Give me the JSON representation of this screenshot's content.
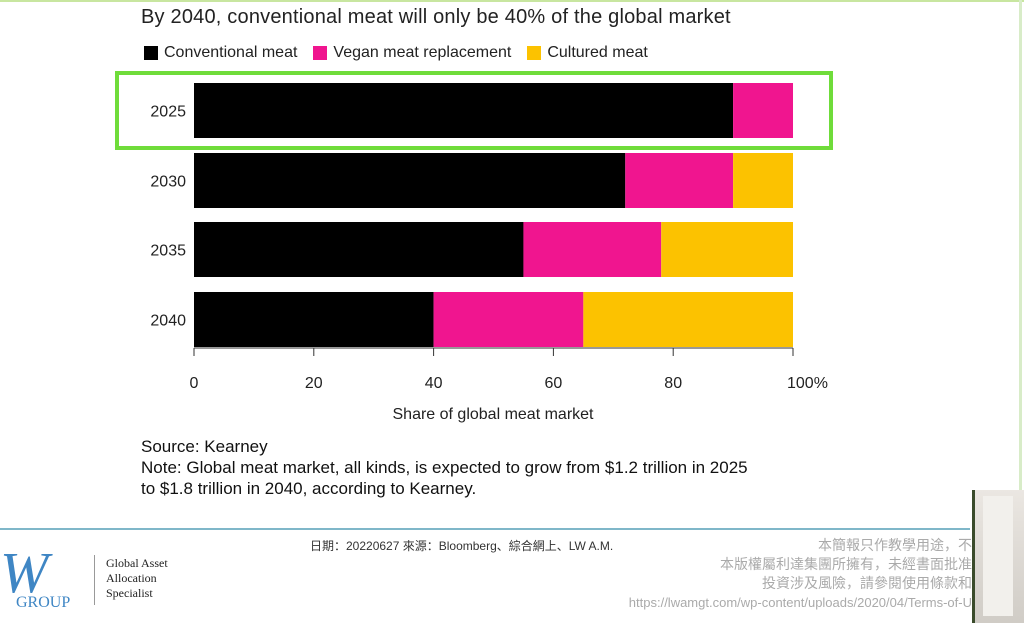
{
  "title": "By 2040, conventional meat will only be 40% of the global market",
  "colors": {
    "conventional": "#000000",
    "vegan": "#f0158f",
    "cultured": "#fcc200",
    "highlight": "#6fdc3a"
  },
  "chart_data": {
    "type": "bar",
    "orientation": "horizontal",
    "stacked": true,
    "categories": [
      "2025",
      "2030",
      "2035",
      "2040"
    ],
    "series": [
      {
        "name": "Conventional meat",
        "values": [
          90,
          72,
          55,
          40
        ]
      },
      {
        "name": "Vegan meat replacement",
        "values": [
          10,
          18,
          23,
          25
        ]
      },
      {
        "name": "Cultured meat",
        "values": [
          0,
          10,
          22,
          35
        ]
      }
    ],
    "x_ticks": [
      "0",
      "20",
      "40",
      "60",
      "80",
      "100%"
    ],
    "xlim": [
      0,
      100
    ],
    "xlabel": "Share of global meat market",
    "ylabel": "",
    "legend_position": "top-left",
    "highlighted_category": "2025",
    "grid": false
  },
  "notes": {
    "source": "Source: Kearney",
    "note_line1": "Note: Global meat market, all kinds, is expected to grow from $1.2 trillion in 2025",
    "note_line2": "to $1.8 trillion in 2040, according to Kearney."
  },
  "footer": {
    "date_source": "日期：20220627 來源：Bloomberg、綜合網上、LW A.M.",
    "disclaimer_line1": "本簡報只作教學用途，不",
    "disclaimer_line2": "本版權屬利達集團所擁有，未經書面批准",
    "disclaimer_line3": "投資涉及風險，請參閱使用條款和",
    "url": "https://lwamgt.com/wp-content/uploads/2020/04/Terms-of-U"
  },
  "logo": {
    "mark": "W",
    "group": "GROUP",
    "tagline": [
      "Global Asset",
      "Allocation",
      "Specialist"
    ]
  }
}
